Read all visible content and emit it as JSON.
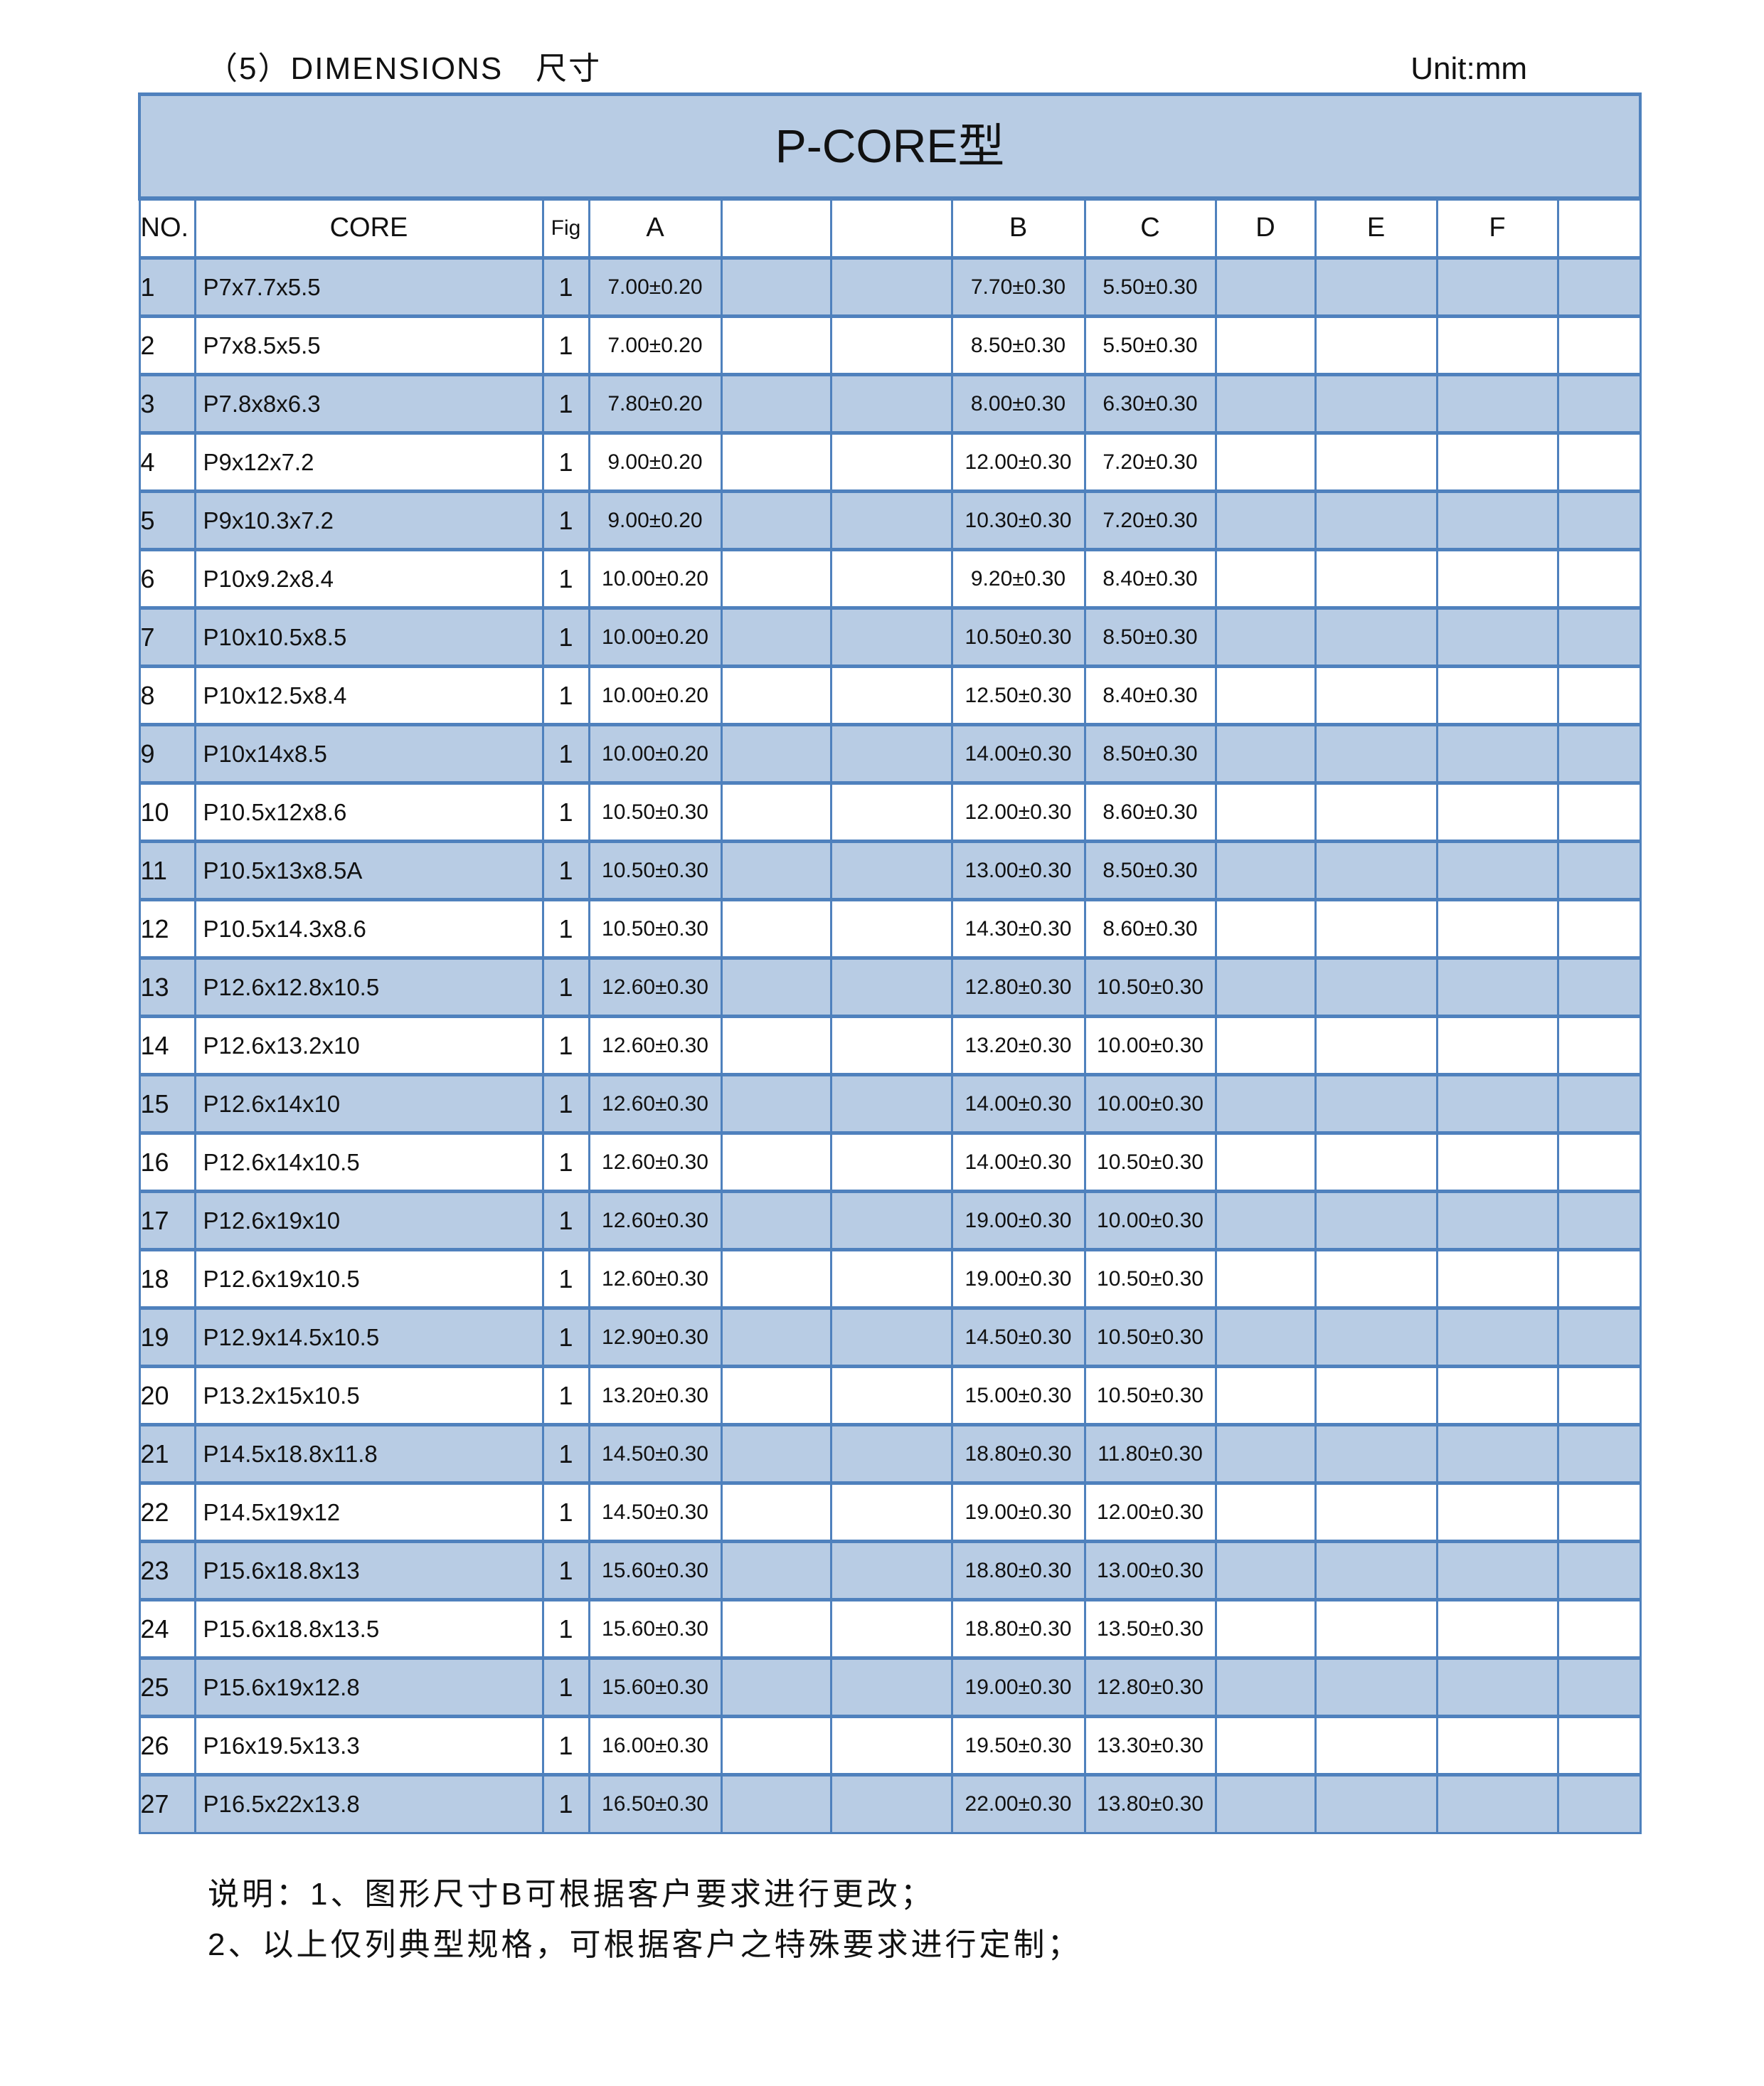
{
  "heading": "（5）DIMENSIONS　尺寸",
  "unit": "Unit:mm",
  "table": {
    "title": "P-CORE型",
    "headers": [
      "NO.",
      "CORE",
      "Fig",
      "A",
      "",
      "",
      "B",
      "C",
      "D",
      "E",
      "F",
      ""
    ],
    "rows": [
      [
        "1",
        "P7x7.7x5.5",
        "1",
        "7.00±0.20",
        "7.70±0.30",
        "5.50±0.30"
      ],
      [
        "2",
        "P7x8.5x5.5",
        "1",
        "7.00±0.20",
        "8.50±0.30",
        "5.50±0.30"
      ],
      [
        "3",
        "P7.8x8x6.3",
        "1",
        "7.80±0.20",
        "8.00±0.30",
        "6.30±0.30"
      ],
      [
        "4",
        "P9x12x7.2",
        "1",
        "9.00±0.20",
        "12.00±0.30",
        "7.20±0.30"
      ],
      [
        "5",
        "P9x10.3x7.2",
        "1",
        "9.00±0.20",
        "10.30±0.30",
        "7.20±0.30"
      ],
      [
        "6",
        "P10x9.2x8.4",
        "1",
        "10.00±0.20",
        "9.20±0.30",
        "8.40±0.30"
      ],
      [
        "7",
        "P10x10.5x8.5",
        "1",
        "10.00±0.20",
        "10.50±0.30",
        "8.50±0.30"
      ],
      [
        "8",
        "P10x12.5x8.4",
        "1",
        "10.00±0.20",
        "12.50±0.30",
        "8.40±0.30"
      ],
      [
        "9",
        "P10x14x8.5",
        "1",
        "10.00±0.20",
        "14.00±0.30",
        "8.50±0.30"
      ],
      [
        "10",
        "P10.5x12x8.6",
        "1",
        "10.50±0.30",
        "12.00±0.30",
        "8.60±0.30"
      ],
      [
        "11",
        "P10.5x13x8.5A",
        "1",
        "10.50±0.30",
        "13.00±0.30",
        "8.50±0.30"
      ],
      [
        "12",
        "P10.5x14.3x8.6",
        "1",
        "10.50±0.30",
        "14.30±0.30",
        "8.60±0.30"
      ],
      [
        "13",
        "P12.6x12.8x10.5",
        "1",
        "12.60±0.30",
        "12.80±0.30",
        "10.50±0.30"
      ],
      [
        "14",
        "P12.6x13.2x10",
        "1",
        "12.60±0.30",
        "13.20±0.30",
        "10.00±0.30"
      ],
      [
        "15",
        "P12.6x14x10",
        "1",
        "12.60±0.30",
        "14.00±0.30",
        "10.00±0.30"
      ],
      [
        "16",
        "P12.6x14x10.5",
        "1",
        "12.60±0.30",
        "14.00±0.30",
        "10.50±0.30"
      ],
      [
        "17",
        "P12.6x19x10",
        "1",
        "12.60±0.30",
        "19.00±0.30",
        "10.00±0.30"
      ],
      [
        "18",
        "P12.6x19x10.5",
        "1",
        "12.60±0.30",
        "19.00±0.30",
        "10.50±0.30"
      ],
      [
        "19",
        "P12.9x14.5x10.5",
        "1",
        "12.90±0.30",
        "14.50±0.30",
        "10.50±0.30"
      ],
      [
        "20",
        "P13.2x15x10.5",
        "1",
        "13.20±0.30",
        "15.00±0.30",
        "10.50±0.30"
      ],
      [
        "21",
        "P14.5x18.8x11.8",
        "1",
        "14.50±0.30",
        "18.80±0.30",
        "11.80±0.30"
      ],
      [
        "22",
        "P14.5x19x12",
        "1",
        "14.50±0.30",
        "19.00±0.30",
        "12.00±0.30"
      ],
      [
        "23",
        "P15.6x18.8x13",
        "1",
        "15.60±0.30",
        "18.80±0.30",
        "13.00±0.30"
      ],
      [
        "24",
        "P15.6x18.8x13.5",
        "1",
        "15.60±0.30",
        "18.80±0.30",
        "13.50±0.30"
      ],
      [
        "25",
        "P15.6x19x12.8",
        "1",
        "15.60±0.30",
        "19.00±0.30",
        "12.80±0.30"
      ],
      [
        "26",
        "P16x19.5x13.3",
        "1",
        "16.00±0.30",
        "19.50±0.30",
        "13.30±0.30"
      ],
      [
        "27",
        "P16.5x22x13.8",
        "1",
        "16.50±0.30",
        "22.00±0.30",
        "13.80±0.30"
      ]
    ]
  },
  "notes": [
    "说明：1、图形尺寸B可根据客户要求进行更改；",
    "2、以上仅列典型规格，可根据客户之特殊要求进行定制；"
  ],
  "colors": {
    "border": "#4f81bd",
    "band": "#b8cce4"
  }
}
